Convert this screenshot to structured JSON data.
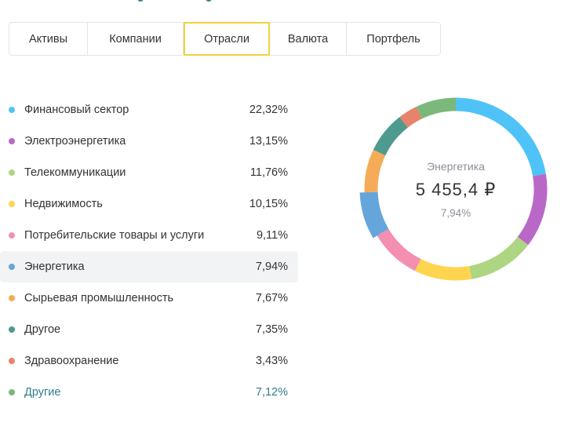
{
  "tabs": [
    {
      "label": "Активы",
      "active": false
    },
    {
      "label": "Компании",
      "active": false
    },
    {
      "label": "Отрасли",
      "active": true
    },
    {
      "label": "Валюта",
      "active": false
    },
    {
      "label": "Портфель",
      "active": false
    }
  ],
  "sectors": [
    {
      "name": "Финансовый сектор",
      "value": "22,32%",
      "share": 22.32,
      "color": "#4fc3f7"
    },
    {
      "name": "Электроэнергетика",
      "value": "13,15%",
      "share": 13.15,
      "color": "#ba68c8"
    },
    {
      "name": "Телекоммуникации",
      "value": "11,76%",
      "share": 11.76,
      "color": "#aed581"
    },
    {
      "name": "Недвижимость",
      "value": "10,15%",
      "share": 10.15,
      "color": "#ffd54f"
    },
    {
      "name": "Потребительские товары и услуги",
      "value": "9,11%",
      "share": 9.11,
      "color": "#f48fb1"
    },
    {
      "name": "Энергетика",
      "value": "7,94%",
      "share": 7.94,
      "color": "#64a6dc",
      "highlighted": true
    },
    {
      "name": "Сырьевая промышленность",
      "value": "7,67%",
      "share": 7.67,
      "color": "#f5ab57"
    },
    {
      "name": "Другое",
      "value": "7,35%",
      "share": 7.35,
      "color": "#4e9a8e"
    },
    {
      "name": "Здравоохранение",
      "value": "3,43%",
      "share": 3.43,
      "color": "#e8826a"
    },
    {
      "name": "Другие",
      "value": "7,12%",
      "share": 7.12,
      "color": "#7cb87c",
      "link": true
    }
  ],
  "donut_center": {
    "label": "Энергетика",
    "value": "5 455,4 ₽",
    "percent": "7,94%"
  }
}
